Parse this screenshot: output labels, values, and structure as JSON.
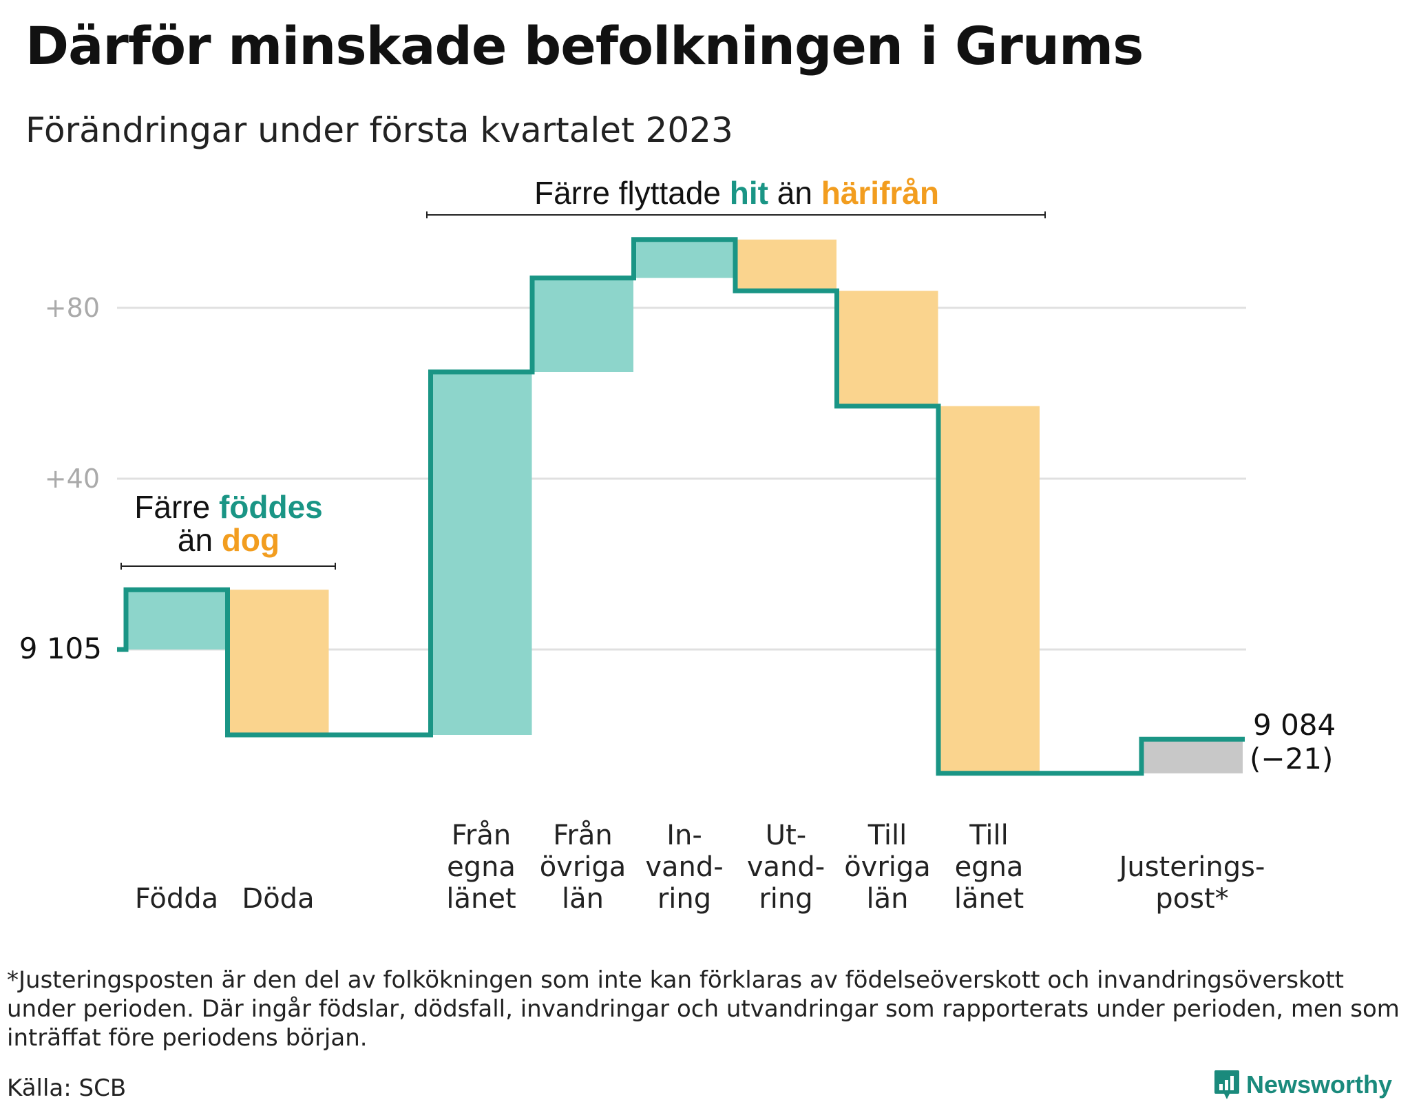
{
  "title": "Därför minskade befolkningen i Grums",
  "subtitle": "Förändringar under första kvartalet 2023",
  "chart_data": {
    "type": "waterfall",
    "start_value": 9105,
    "start_label": "9 105",
    "end_value": 9084,
    "end_label": "9 084",
    "end_change_label": "(−21)",
    "y_tick_labels": [
      "9 105",
      "+40",
      "+80"
    ],
    "y_ticks": [
      0,
      40,
      80
    ],
    "ylim": [
      -30,
      100
    ],
    "categories": [
      {
        "label": [
          "Födda"
        ],
        "value": 14,
        "kind": "in"
      },
      {
        "label": [
          "Döda"
        ],
        "value": -34,
        "kind": "out"
      },
      {
        "label": [
          "Från",
          "egna",
          "länet"
        ],
        "value": 85,
        "kind": "in"
      },
      {
        "label": [
          "Från",
          "övriga",
          "län"
        ],
        "value": 22,
        "kind": "in"
      },
      {
        "label": [
          "In-",
          "vand-",
          "ring"
        ],
        "value": 9,
        "kind": "in"
      },
      {
        "label": [
          "Ut-",
          "vand-",
          "ring"
        ],
        "value": -12,
        "kind": "out"
      },
      {
        "label": [
          "Till",
          "övriga",
          "län"
        ],
        "value": -27,
        "kind": "out"
      },
      {
        "label": [
          "Till",
          "egna",
          "länet"
        ],
        "value": -86,
        "kind": "out"
      },
      {
        "label": [
          "Justerings-",
          "post*"
        ],
        "value": 8,
        "kind": "adjust"
      }
    ],
    "annotations": [
      {
        "pre": "Färre ",
        "hl1": "föddes",
        "mid": "än ",
        "hl2": "dog"
      },
      {
        "pre": "Färre flyttade ",
        "hl1": "hit",
        "mid": " än ",
        "hl2": "härifrån"
      }
    ],
    "colors": {
      "in": "#8dd5cb",
      "out": "#fad48e",
      "adjust": "#c8c8c8",
      "line": "#1a9585",
      "grid": "#e0e0e0",
      "teal_text": "#1a9585",
      "orange_text": "#f29d1f"
    }
  },
  "footnote": "*Justeringsposten är den del av folkökningen som inte kan förklaras av födelseöverskott och invandringsöverskott under perioden. Där ingår födslar, dödsfall, invandringar och utvandringar som rapporterats under perioden, men som inträffat före periodens början.",
  "source": "Källa: SCB",
  "brand": {
    "name": "Newsworthy",
    "icon": "newsworthy-logo-icon"
  }
}
